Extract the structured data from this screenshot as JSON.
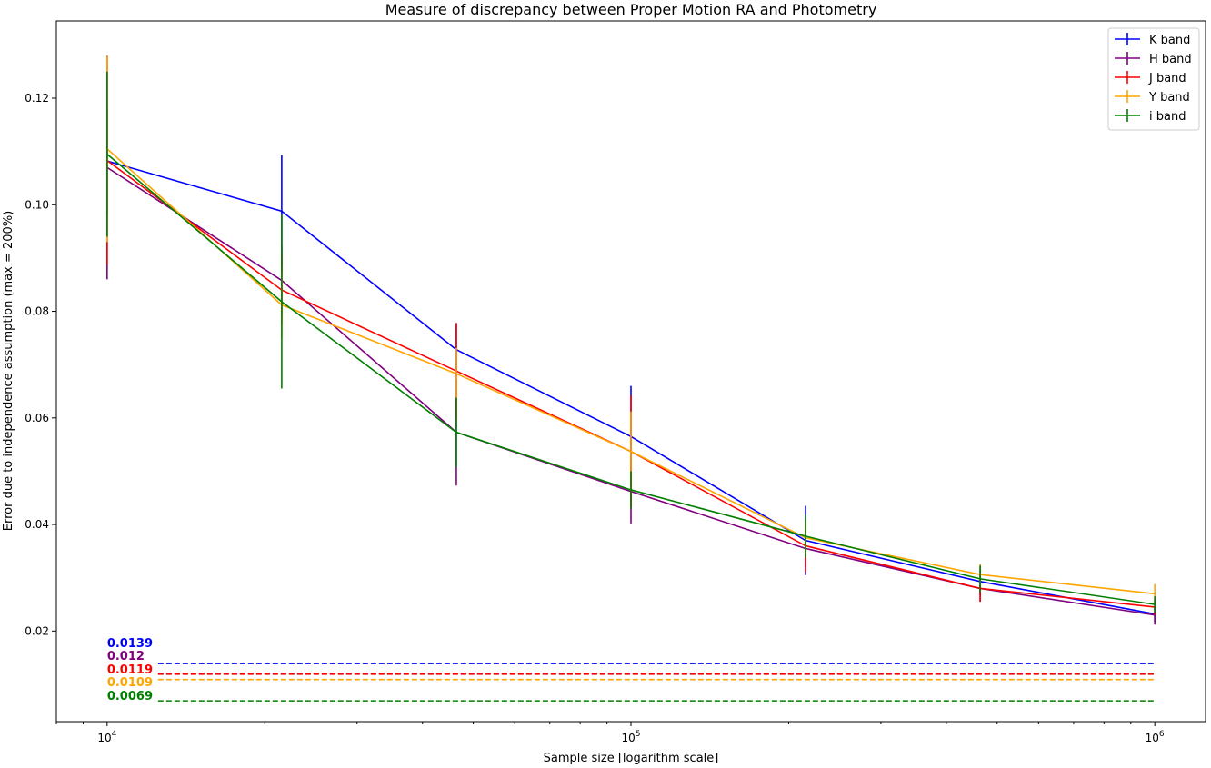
{
  "chart_data": {
    "type": "line",
    "title": "Measure of discrepancy between Proper Motion RA and Photometry",
    "xlabel": "Sample size [logarithm scale]",
    "ylabel": "Error due to independence assumption (max = 200%)",
    "xscale": "log",
    "xlim": [
      8000,
      1250000
    ],
    "ylim": [
      0.003,
      0.1345
    ],
    "x": [
      10000,
      21544,
      46416,
      100000,
      215443,
      464159,
      1000000
    ],
    "x_ticks": [
      {
        "value": 10000,
        "label_base": "10",
        "label_exp": "4"
      },
      {
        "value": 100000,
        "label_base": "10",
        "label_exp": "5"
      },
      {
        "value": 1000000,
        "label_base": "10",
        "label_exp": "6"
      }
    ],
    "y_ticks": [
      0.02,
      0.04,
      0.06,
      0.08,
      0.1,
      0.12
    ],
    "y_tick_labels": [
      "0.02",
      "0.04",
      "0.06",
      "0.08",
      "0.10",
      "0.12"
    ],
    "legend_position": "top-right",
    "grid": false,
    "series": [
      {
        "name": "K band",
        "color": "#0000ff",
        "y": [
          0.1082,
          0.0988,
          0.0728,
          0.0565,
          0.037,
          0.0293,
          0.0232
        ],
        "yerr": [
          0.01,
          0.0105,
          0.005,
          0.0095,
          0.0065,
          0.0025,
          0.0015
        ]
      },
      {
        "name": "H band",
        "color": "#800080",
        "y": [
          0.107,
          0.0858,
          0.0573,
          0.0462,
          0.0355,
          0.028,
          0.023
        ],
        "yerr": [
          0.021,
          0.0065,
          0.01,
          0.006,
          0.0035,
          0.0025,
          0.0018
        ]
      },
      {
        "name": "J band",
        "color": "#ff0000",
        "y": [
          0.1083,
          0.084,
          0.0688,
          0.0537,
          0.036,
          0.028,
          0.0245
        ],
        "yerr": [
          0.0195,
          0.0065,
          0.009,
          0.0105,
          0.005,
          0.0025,
          0.0015
        ]
      },
      {
        "name": "Y band",
        "color": "#ffa500",
        "y": [
          0.1105,
          0.0812,
          0.0683,
          0.0537,
          0.0375,
          0.0306,
          0.027
        ],
        "yerr": [
          0.0175,
          0.0062,
          0.0048,
          0.0075,
          0.003,
          0.002,
          0.0018
        ]
      },
      {
        "name": "i band",
        "color": "#008000",
        "y": [
          0.1095,
          0.0818,
          0.0573,
          0.0465,
          0.0378,
          0.0298,
          0.025
        ],
        "yerr": [
          0.0155,
          0.0163,
          0.0065,
          0.0035,
          0.004,
          0.0025,
          0.0015
        ]
      }
    ],
    "reference_lines": [
      {
        "value": 0.0139,
        "label": "0.0139",
        "color": "#0000ff"
      },
      {
        "value": 0.012,
        "label": "0.012",
        "color": "#800080"
      },
      {
        "value": 0.0119,
        "label": "0.0119",
        "color": "#ff0000"
      },
      {
        "value": 0.0109,
        "label": "0.0109",
        "color": "#ffa500"
      },
      {
        "value": 0.0069,
        "label": "0.0069",
        "color": "#008000"
      }
    ]
  }
}
